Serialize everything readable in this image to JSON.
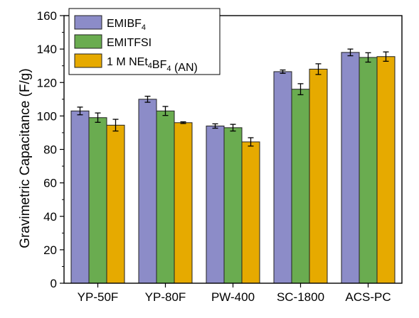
{
  "chart_data": {
    "type": "bar",
    "title": "",
    "xlabel": "",
    "ylabel": "Gravimetric Capacitance (F/g)",
    "ylim": [
      0,
      160
    ],
    "yticks": [
      0,
      20,
      40,
      60,
      80,
      100,
      120,
      140,
      160
    ],
    "categories": [
      "YP-50F",
      "YP-80F",
      "PW-400",
      "SC-1800",
      "ACS-PC"
    ],
    "legend_position": "top-left",
    "grid": false,
    "series": [
      {
        "name": "EMIBF4",
        "legend_parts": [
          {
            "t": "EMIBF"
          },
          {
            "t": "4",
            "sub": true
          }
        ],
        "color": "#8c8cc8",
        "values": [
          103.0,
          110.0,
          94.0,
          126.5,
          138.0
        ],
        "errors": [
          2.3,
          1.8,
          1.3,
          1.0,
          2.0
        ]
      },
      {
        "name": "EMITFSI",
        "legend_parts": [
          {
            "t": "EMITFSI"
          }
        ],
        "color": "#6aac50",
        "values": [
          99.0,
          103.0,
          93.0,
          116.0,
          135.0
        ],
        "errors": [
          2.8,
          2.7,
          2.0,
          3.3,
          2.8
        ]
      },
      {
        "name": "1 M NEt4BF4 (AN)",
        "legend_parts": [
          {
            "t": "1 M NEt"
          },
          {
            "t": "4",
            "sub": true
          },
          {
            "t": "BF"
          },
          {
            "t": "4",
            "sub": true
          },
          {
            "t": " (AN)"
          }
        ],
        "color": "#e6aa00",
        "values": [
          94.5,
          96.0,
          84.5,
          128.0,
          135.5
        ],
        "errors": [
          3.5,
          0.5,
          2.5,
          3.2,
          2.8
        ]
      }
    ]
  }
}
